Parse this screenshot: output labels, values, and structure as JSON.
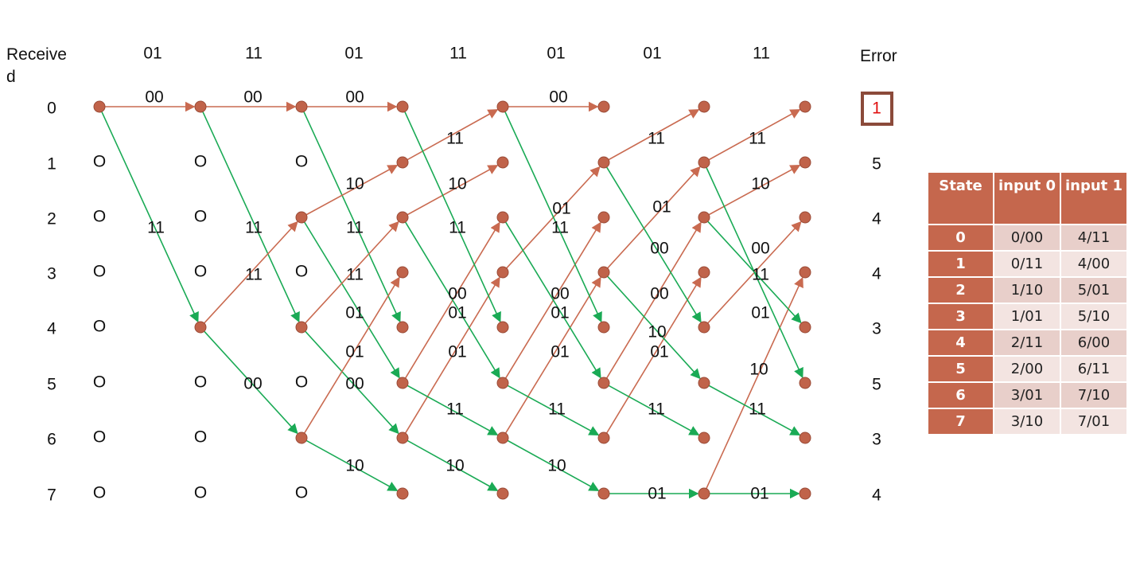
{
  "received_label": "Received",
  "received": [
    "01",
    "11",
    "01",
    "11",
    "01",
    "01",
    "11"
  ],
  "error_label": "Error",
  "states": [
    "0",
    "1",
    "2",
    "3",
    "4",
    "5",
    "6",
    "7"
  ],
  "errors": [
    "1",
    "5",
    "4",
    "4",
    "3",
    "5",
    "3",
    "4"
  ],
  "empty_marker": "O",
  "edge_labels": [
    "00",
    "00",
    "00",
    "00",
    "11",
    "11",
    "11",
    "00",
    "10",
    "11",
    "11",
    "01",
    "01",
    "00",
    "10",
    "11",
    "10",
    "11",
    "00",
    "01",
    "01",
    "11",
    "10",
    "01",
    "11",
    "00",
    "01",
    "01",
    "11",
    "10",
    "11",
    "01",
    "00",
    "00",
    "10",
    "01",
    "11",
    "01",
    "11",
    "10",
    "00",
    "11",
    "01",
    "10",
    "11",
    "01"
  ],
  "table": {
    "header": [
      "State",
      "input 0",
      "input 1"
    ],
    "rows": [
      [
        "0",
        "0/00",
        "4/11"
      ],
      [
        "1",
        "0/11",
        "4/00"
      ],
      [
        "2",
        "1/10",
        "5/01"
      ],
      [
        "3",
        "1/01",
        "5/10"
      ],
      [
        "4",
        "2/11",
        "6/00"
      ],
      [
        "5",
        "2/00",
        "6/11"
      ],
      [
        "6",
        "3/01",
        "7/10"
      ],
      [
        "7",
        "3/10",
        "7/01"
      ]
    ]
  }
}
